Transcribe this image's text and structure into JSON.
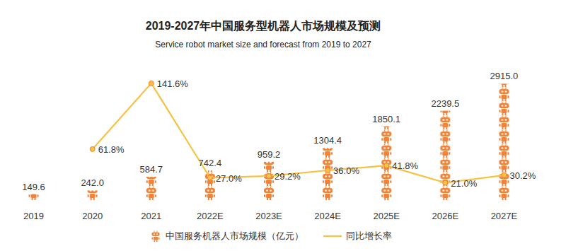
{
  "chart_data": {
    "type": "bar",
    "title": "2019-2027年中国服务型机器人市场规模及预测",
    "subtitle": "Service robot market size and forecast from 2019 to 2027",
    "categories": [
      "2019",
      "2020",
      "2021",
      "2022E",
      "2023E",
      "2024E",
      "2025E",
      "2026E",
      "2027E"
    ],
    "series": [
      {
        "name": "中国服务机器人市场规模（亿元）",
        "type": "bar",
        "color": "#f0823a",
        "values": [
          149.6,
          242.0,
          584.7,
          742.4,
          959.2,
          1304.4,
          1850.1,
          2239.5,
          2915.0
        ],
        "value_labels": [
          "149.6",
          "242.0",
          "584.7",
          "742.4",
          "959.2",
          "1304.4",
          "1850.1",
          "2239.5",
          "2915.0"
        ]
      },
      {
        "name": "同比增长率",
        "type": "line",
        "axis": "y2",
        "color": "#f5c243",
        "marker": "circle",
        "values": [
          null,
          61.8,
          141.6,
          27.0,
          29.2,
          36.0,
          41.8,
          21.0,
          30.2
        ],
        "value_labels": [
          null,
          "61.8%",
          "141.6%",
          "27.0%",
          "29.2%",
          "36.0%",
          "41.8%",
          "21.0%",
          "30.2%"
        ]
      }
    ],
    "ylim": [
      0,
      3100
    ],
    "y2lim": [
      0,
      150
    ],
    "data_labels": true,
    "tick_labels": "x",
    "grid": false,
    "legend": "bottom"
  }
}
